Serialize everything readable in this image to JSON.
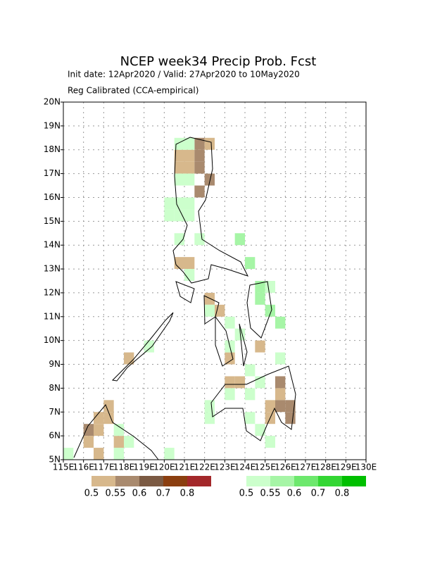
{
  "header": {
    "title": "NCEP week34 Precip Prob. Fcst",
    "line1": "Init date: 12Apr2020 / Valid: 27Apr2020 to 10May2020",
    "line2": "Reg Calibrated (CCA-empirical)"
  },
  "chart_data": {
    "type": "grid-map",
    "xlim": [
      115,
      130
    ],
    "ylim": [
      5,
      20
    ],
    "xticks": [
      {
        "value": 115,
        "label": "115E"
      },
      {
        "value": 116,
        "label": "116E"
      },
      {
        "value": 117,
        "label": "117E"
      },
      {
        "value": 118,
        "label": "118E"
      },
      {
        "value": 119,
        "label": "119E"
      },
      {
        "value": 120,
        "label": "120E"
      },
      {
        "value": 121,
        "label": "121E"
      },
      {
        "value": 122,
        "label": "122E"
      },
      {
        "value": 123,
        "label": "123E"
      },
      {
        "value": 124,
        "label": "124E"
      },
      {
        "value": 125,
        "label": "125E"
      },
      {
        "value": 126,
        "label": "126E"
      },
      {
        "value": 127,
        "label": "127E"
      },
      {
        "value": 128,
        "label": "128E"
      },
      {
        "value": 129,
        "label": "129E"
      },
      {
        "value": 130,
        "label": "130E"
      }
    ],
    "yticks": [
      {
        "value": 5,
        "label": "5N"
      },
      {
        "value": 6,
        "label": "6N"
      },
      {
        "value": 7,
        "label": "7N"
      },
      {
        "value": 8,
        "label": "8N"
      },
      {
        "value": 9,
        "label": "9N"
      },
      {
        "value": 10,
        "label": "10N"
      },
      {
        "value": 11,
        "label": "11N"
      },
      {
        "value": 12,
        "label": "12N"
      },
      {
        "value": 13,
        "label": "13N"
      },
      {
        "value": 14,
        "label": "14N"
      },
      {
        "value": 15,
        "label": "15N"
      },
      {
        "value": 16,
        "label": "16N"
      },
      {
        "value": 17,
        "label": "17N"
      },
      {
        "value": 18,
        "label": "18N"
      },
      {
        "value": 19,
        "label": "19N"
      },
      {
        "value": 20,
        "label": "20N"
      }
    ],
    "grid": true,
    "below_legend": {
      "levels": [
        0.5,
        0.55,
        0.6,
        0.7,
        0.8
      ],
      "colors": [
        "#d7b88c",
        "#a98a6e",
        "#7b5a43",
        "#8b3f10",
        "#a3282a"
      ]
    },
    "above_legend": {
      "levels": [
        0.5,
        0.55,
        0.6,
        0.7,
        0.8
      ],
      "colors": [
        "#ccffcc",
        "#a6f5a6",
        "#6de86d",
        "#33d633",
        "#00bf00"
      ]
    },
    "below_cells": [
      [
        120.5,
        17.5,
        0.5
      ],
      [
        120.5,
        17,
        0.5
      ],
      [
        121,
        17,
        0.5
      ],
      [
        121,
        17.5,
        0.5
      ],
      [
        121.5,
        17.5,
        0.55
      ],
      [
        121.5,
        17,
        0.55
      ],
      [
        121.5,
        18,
        0.55
      ],
      [
        122,
        18,
        0.5
      ],
      [
        122,
        16.5,
        0.55
      ],
      [
        121.5,
        16,
        0.55
      ],
      [
        120.5,
        13,
        0.5
      ],
      [
        121,
        13,
        0.5
      ],
      [
        122,
        11.5,
        0.5
      ],
      [
        122.5,
        11,
        0.5
      ],
      [
        123.5,
        8,
        0.5
      ],
      [
        123,
        8,
        0.5
      ],
      [
        123,
        9,
        0.5
      ],
      [
        124.5,
        9.5,
        0.5
      ],
      [
        125.5,
        8,
        0.55
      ],
      [
        125.5,
        7.5,
        0.5
      ],
      [
        125.5,
        7,
        0.55
      ],
      [
        125,
        7,
        0.5
      ],
      [
        125,
        6.5,
        0.5
      ],
      [
        126,
        6.5,
        0.55
      ],
      [
        126,
        7,
        0.55
      ],
      [
        116,
        6,
        0.55
      ],
      [
        116,
        5.5,
        0.5
      ],
      [
        116.5,
        6.5,
        0.5
      ],
      [
        116.5,
        6,
        0.5
      ],
      [
        116.5,
        5,
        0.5
      ],
      [
        117,
        7,
        0.5
      ],
      [
        117,
        6.5,
        0.5
      ],
      [
        117.5,
        5.5,
        0.5
      ],
      [
        118,
        9,
        0.5
      ]
    ],
    "above_cells": [
      [
        120.5,
        18,
        0.5
      ],
      [
        121,
        18,
        0.5
      ],
      [
        120.5,
        16.5,
        0.5
      ],
      [
        121,
        16.5,
        0.5
      ],
      [
        120,
        15.5,
        0.5
      ],
      [
        120.5,
        15.5,
        0.5
      ],
      [
        121,
        15.5,
        0.5
      ],
      [
        120,
        15,
        0.5
      ],
      [
        120.5,
        15,
        0.5
      ],
      [
        121,
        15,
        0.5
      ],
      [
        121.5,
        14,
        0.5
      ],
      [
        120.5,
        14,
        0.5
      ],
      [
        123.5,
        14,
        0.55
      ],
      [
        124,
        13,
        0.55
      ],
      [
        121,
        12.5,
        0.5
      ],
      [
        124.5,
        12,
        0.55
      ],
      [
        125,
        12,
        0.5
      ],
      [
        124.5,
        11.5,
        0.55
      ],
      [
        125,
        11,
        0.55
      ],
      [
        125.5,
        10.5,
        0.55
      ],
      [
        122,
        11,
        0.5
      ],
      [
        123,
        10.5,
        0.5
      ],
      [
        123.5,
        10,
        0.5
      ],
      [
        123,
        9.5,
        0.5
      ],
      [
        124,
        8.5,
        0.5
      ],
      [
        124.5,
        8,
        0.5
      ],
      [
        124,
        7.5,
        0.5
      ],
      [
        124,
        6.5,
        0.5
      ],
      [
        124.5,
        6,
        0.5
      ],
      [
        125,
        5.5,
        0.5
      ],
      [
        122,
        7,
        0.5
      ],
      [
        122,
        6.5,
        0.5
      ],
      [
        123,
        7.5,
        0.5
      ],
      [
        117.5,
        6,
        0.5
      ],
      [
        118,
        5.5,
        0.5
      ],
      [
        117.5,
        5,
        0.5
      ],
      [
        115,
        5,
        0.5
      ],
      [
        120,
        5,
        0.5
      ],
      [
        125.5,
        9,
        0.5
      ],
      [
        119,
        9.5,
        0.5
      ]
    ]
  }
}
